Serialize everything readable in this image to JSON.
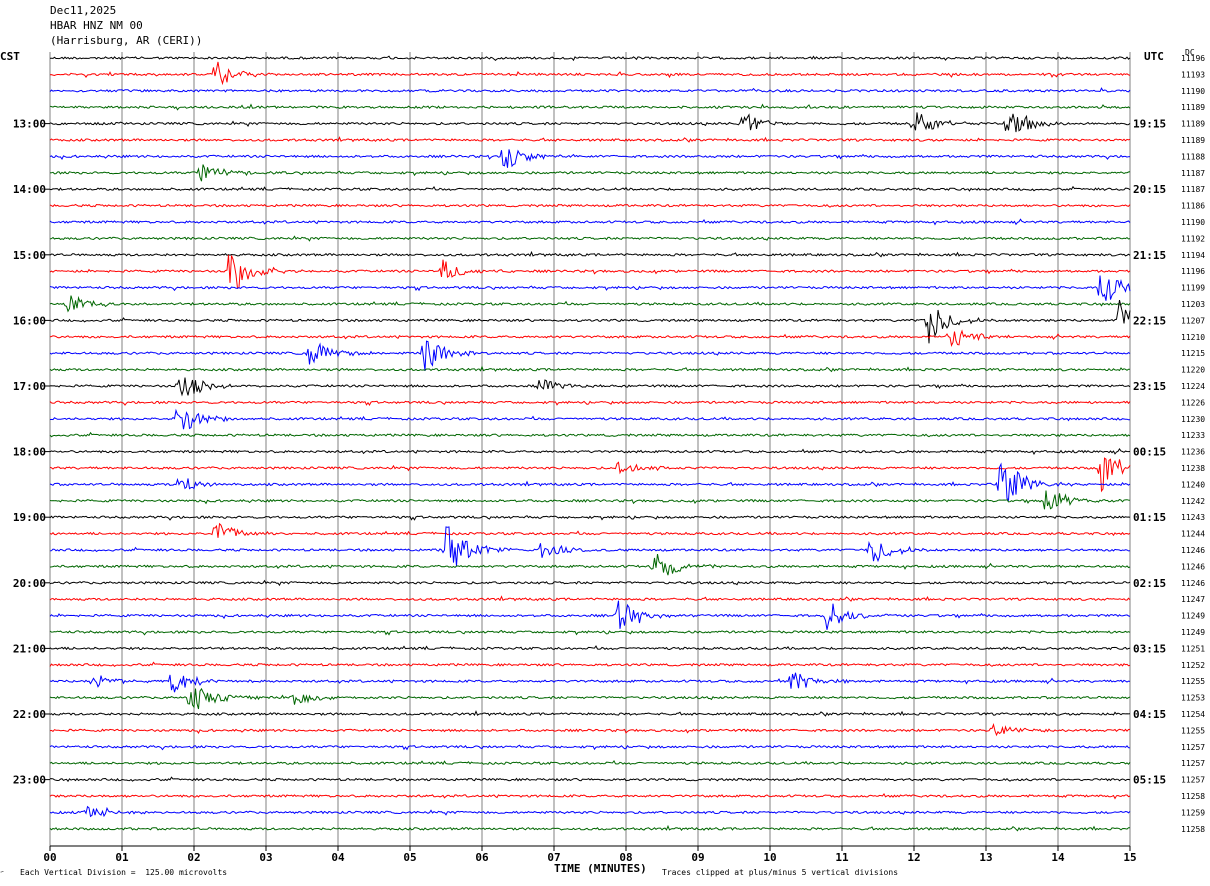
{
  "header": {
    "date": "Dec11,2025",
    "station": "HBAR HNZ NM 00",
    "location": "(Harrisburg, AR (CERI))"
  },
  "left_tz": "CST",
  "right_tz": "UTC",
  "dc_label": "DC",
  "footer": {
    "scale_note": "Each Vertical Division =  125.00 microvolts",
    "clip_note": "Traces clipped at plus/minus 5 vertical divisions",
    "corner_mark": "҃"
  },
  "chart_data": {
    "type": "line",
    "title": "",
    "xlabel": "TIME (MINUTES)",
    "ylabel": "",
    "xlim": [
      0,
      15
    ],
    "x_ticks": [
      "00",
      "01",
      "02",
      "03",
      "04",
      "05",
      "06",
      "07",
      "08",
      "09",
      "10",
      "11",
      "12",
      "13",
      "14",
      "15"
    ],
    "trace_colors": [
      "#000000",
      "#ff0000",
      "#0000ff",
      "#006600"
    ],
    "left_hour_labels": [
      "13:00",
      "14:00",
      "15:00",
      "16:00",
      "17:00",
      "18:00",
      "19:00",
      "20:00",
      "21:00",
      "22:00",
      "23:00"
    ],
    "right_hour_labels": [
      "19:15",
      "20:15",
      "21:15",
      "22:15",
      "23:15",
      "00:15",
      "01:15",
      "02:15",
      "03:15",
      "04:15",
      "05:15"
    ],
    "dc_offsets": [
      11196,
      11193,
      11190,
      11189,
      11189,
      11189,
      11188,
      11187,
      11187,
      11186,
      11190,
      11192,
      11194,
      11196,
      11199,
      11203,
      11207,
      11210,
      11215,
      11220,
      11224,
      11226,
      11230,
      11233,
      11236,
      11238,
      11240,
      11242,
      11243,
      11244,
      11246,
      11246,
      11246,
      11247,
      11249,
      11249,
      11251,
      11252,
      11255,
      11253,
      11254,
      11255,
      11257,
      11257,
      11257,
      11258,
      11259,
      11258
    ],
    "events": [
      {
        "trace": 1,
        "minute": 2.3,
        "amp": 1.0
      },
      {
        "trace": 4,
        "minute": 9.6,
        "amp": 1.0
      },
      {
        "trace": 4,
        "minute": 12.0,
        "amp": 1.2
      },
      {
        "trace": 4,
        "minute": 13.3,
        "amp": 1.5
      },
      {
        "trace": 6,
        "minute": 6.3,
        "amp": 1.2
      },
      {
        "trace": 7,
        "minute": 2.1,
        "amp": 0.8
      },
      {
        "trace": 13,
        "minute": 2.5,
        "amp": 2.0
      },
      {
        "trace": 13,
        "minute": 5.45,
        "amp": 0.8
      },
      {
        "trace": 14,
        "minute": 14.6,
        "amp": 1.6
      },
      {
        "trace": 15,
        "minute": 0.25,
        "amp": 0.8
      },
      {
        "trace": 16,
        "minute": 12.2,
        "amp": 1.8
      },
      {
        "trace": 16,
        "minute": 14.85,
        "amp": 2.5
      },
      {
        "trace": 17,
        "minute": 12.5,
        "amp": 1.0
      },
      {
        "trace": 18,
        "minute": 3.6,
        "amp": 1.2
      },
      {
        "trace": 18,
        "minute": 5.2,
        "amp": 1.4
      },
      {
        "trace": 20,
        "minute": 1.8,
        "amp": 1.2
      },
      {
        "trace": 20,
        "minute": 6.8,
        "amp": 0.6
      },
      {
        "trace": 22,
        "minute": 1.75,
        "amp": 1.6
      },
      {
        "trace": 25,
        "minute": 7.9,
        "amp": 0.7
      },
      {
        "trace": 25,
        "minute": 14.6,
        "amp": 1.8
      },
      {
        "trace": 26,
        "minute": 1.8,
        "amp": 0.8
      },
      {
        "trace": 26,
        "minute": 13.2,
        "amp": 2.2
      },
      {
        "trace": 27,
        "minute": 13.8,
        "amp": 1.3
      },
      {
        "trace": 29,
        "minute": 2.3,
        "amp": 1.0
      },
      {
        "trace": 30,
        "minute": 5.5,
        "amp": 2.2
      },
      {
        "trace": 30,
        "minute": 6.8,
        "amp": 0.7
      },
      {
        "trace": 30,
        "minute": 11.4,
        "amp": 1.3
      },
      {
        "trace": 31,
        "minute": 8.4,
        "amp": 1.3
      },
      {
        "trace": 34,
        "minute": 7.9,
        "amp": 1.2
      },
      {
        "trace": 34,
        "minute": 10.8,
        "amp": 1.2
      },
      {
        "trace": 38,
        "minute": 0.6,
        "amp": 0.7
      },
      {
        "trace": 38,
        "minute": 1.7,
        "amp": 1.0
      },
      {
        "trace": 38,
        "minute": 10.3,
        "amp": 0.9
      },
      {
        "trace": 39,
        "minute": 1.95,
        "amp": 1.3
      },
      {
        "trace": 39,
        "minute": 3.4,
        "amp": 0.6
      },
      {
        "trace": 41,
        "minute": 13.1,
        "amp": 0.5
      },
      {
        "trace": 46,
        "minute": 0.5,
        "amp": 0.6
      }
    ]
  }
}
